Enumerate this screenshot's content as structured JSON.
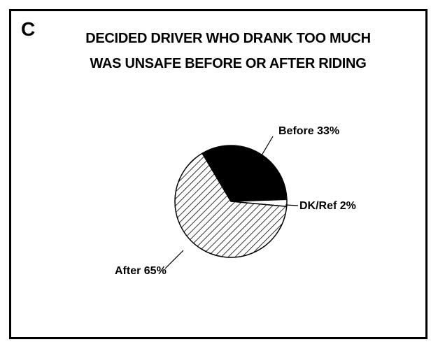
{
  "panel_label": "C",
  "chart_data": {
    "type": "pie",
    "title": "DECIDED DRIVER WHO DRANK TOO MUCH",
    "subtitle": "WAS UNSAFE BEFORE OR AFTER RIDING",
    "slices": [
      {
        "label": "Before",
        "value": 33,
        "display": "Before 33%",
        "fill": "#000000"
      },
      {
        "label": "DK/Ref",
        "value": 2,
        "display": "DK/Ref 2%",
        "fill": "#ffffff"
      },
      {
        "label": "After",
        "value": 65,
        "display": "After 65%",
        "fill": "hatch"
      }
    ]
  }
}
